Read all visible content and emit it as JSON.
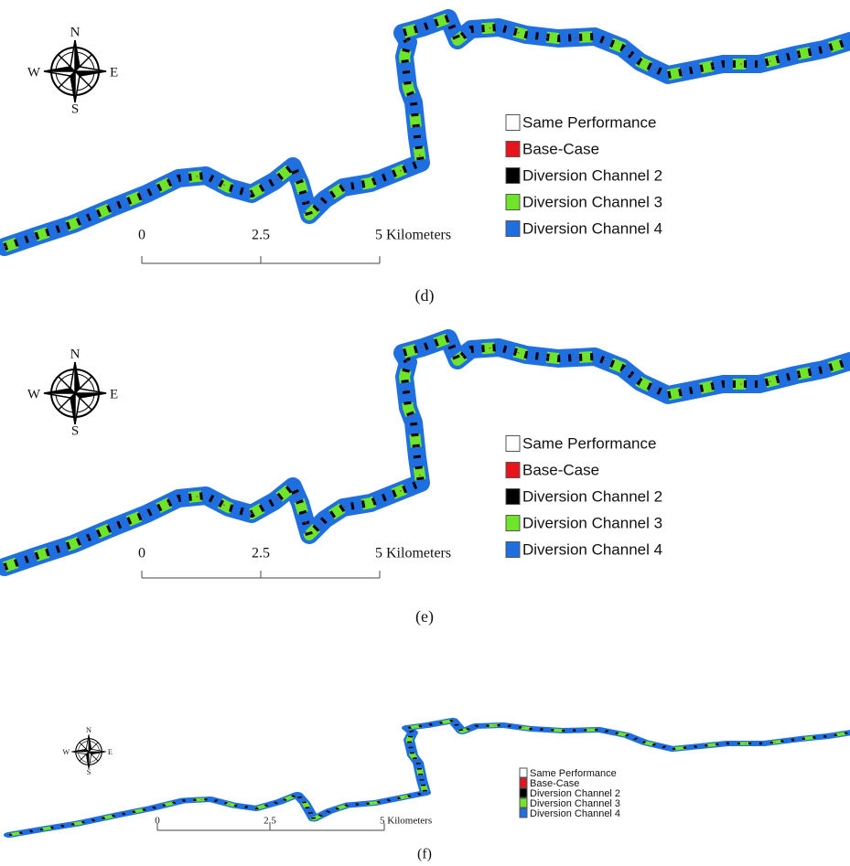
{
  "panels": [
    {
      "caption": "(d)",
      "compass": {
        "n": "N",
        "e": "E",
        "s": "S",
        "w": "W"
      },
      "legend": [
        {
          "label": "Same Performance",
          "color": "#ffffff"
        },
        {
          "label": "Base-Case",
          "color": "#e8141b"
        },
        {
          "label": "Diversion Channel 2",
          "color": "#000000"
        },
        {
          "label": "Diversion Channel 3",
          "color": "#6fe52a"
        },
        {
          "label": "Diversion Channel 4",
          "color": "#1f6fe0"
        }
      ],
      "scale_bar": [
        "0",
        "2.5",
        "5 Kilometers"
      ]
    },
    {
      "caption": "(e)",
      "compass": {
        "n": "N",
        "e": "E",
        "s": "S",
        "w": "W"
      },
      "legend": [
        {
          "label": "Same Performance",
          "color": "#ffffff"
        },
        {
          "label": "Base-Case",
          "color": "#e8141b"
        },
        {
          "label": "Diversion Channel 2",
          "color": "#000000"
        },
        {
          "label": "Diversion Channel 3",
          "color": "#6fe52a"
        },
        {
          "label": "Diversion Channel 4",
          "color": "#1f6fe0"
        }
      ],
      "scale_bar": [
        "0",
        "2.5",
        "5 Kilometers"
      ]
    },
    {
      "caption": "(f)",
      "compass": {
        "n": "N",
        "e": "E",
        "s": "S",
        "w": "W"
      },
      "legend": [
        {
          "label": "Same Performance",
          "color": "#ffffff"
        },
        {
          "label": "Base-Case",
          "color": "#e8141b"
        },
        {
          "label": "Diversion Channel 2",
          "color": "#000000"
        },
        {
          "label": "Diversion Channel 3",
          "color": "#6fe52a"
        },
        {
          "label": "Diversion Channel 4",
          "color": "#1f6fe0"
        }
      ],
      "scale_bar": [
        "0",
        "2.5",
        "5 Kilometers"
      ]
    }
  ]
}
